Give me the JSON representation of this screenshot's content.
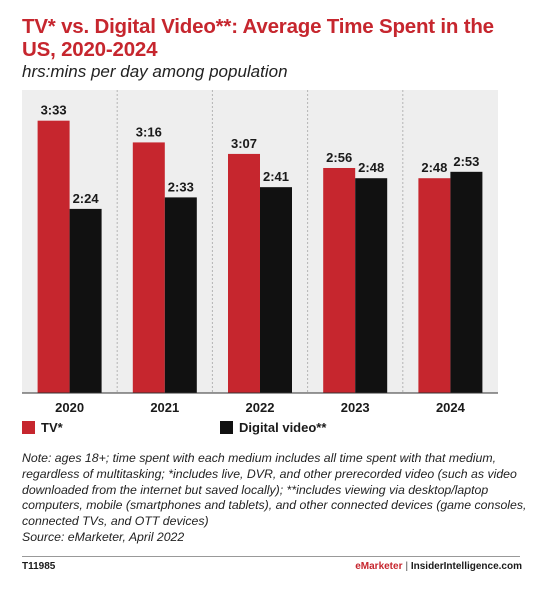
{
  "title": "TV* vs. Digital Video**: Average Time Spent in the US, 2020-2024",
  "subtitle": "hrs:mins per day among population",
  "legend": [
    {
      "label": "TV*",
      "color": "#c6262e"
    },
    {
      "label": "Digital video**",
      "color": "#111111"
    }
  ],
  "note": "Note: ages 18+; time spent with each medium includes all time spent with that medium, regardless of multitasking; *includes live, DVR, and other prerecorded video (such as video downloaded from the internet but saved locally); **includes viewing via desktop/laptop computers, mobile (smartphones and tablets), and other connected devices (game consoles, connected TVs, and OTT devices)",
  "source": "Source: eMarketer, April 2022",
  "footer": {
    "id": "T11985",
    "brand_emarketer": "eMarketer",
    "brand_sep": " | ",
    "brand_insider": "InsiderIntelligence.com"
  },
  "chart_data": {
    "type": "bar",
    "categories": [
      "2020",
      "2021",
      "2022",
      "2023",
      "2024"
    ],
    "series": [
      {
        "name": "TV*",
        "color": "#c6262e",
        "values": [
          213,
          196,
          187,
          176,
          168
        ],
        "labels": [
          "3:33",
          "3:16",
          "3:07",
          "2:56",
          "2:48"
        ]
      },
      {
        "name": "Digital video**",
        "color": "#111111",
        "values": [
          144,
          153,
          161,
          168,
          173
        ],
        "labels": [
          "2:24",
          "2:33",
          "2:41",
          "2:48",
          "2:53"
        ]
      }
    ],
    "ylim": [
      0,
      237
    ],
    "grid": true,
    "legend_position": "bottom-left"
  }
}
